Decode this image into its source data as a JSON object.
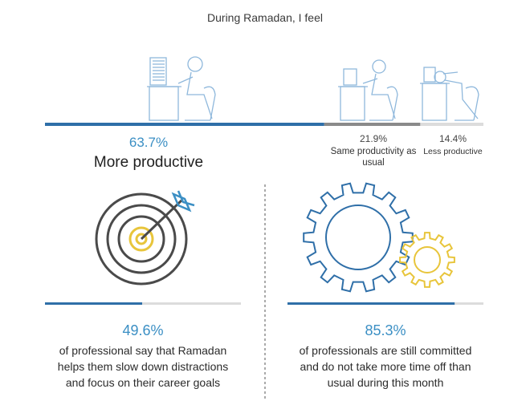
{
  "title": "During Ramadan, I feel",
  "colors": {
    "blue": "#2f6fa8",
    "gray": "#8a8a8a",
    "light": "#dcdcdc",
    "accent": "#3b8fc4",
    "yellow": "#e8c53b",
    "icon": "#8fb8dc"
  },
  "chart_data": [
    {
      "type": "bar",
      "orientation": "stacked-horizontal",
      "title": "During Ramadan, I feel",
      "categories": [
        "More productive",
        "Same productivity as usual",
        "Less productive"
      ],
      "values": [
        63.7,
        21.9,
        14.4
      ],
      "value_labels": [
        "63.7%",
        "21.9%",
        "14.4%"
      ],
      "unit": "%"
    },
    {
      "type": "bar",
      "orientation": "progress",
      "values": [
        49.6
      ],
      "value_labels": [
        "49.6%"
      ],
      "description": [
        "of professional say that Ramadan",
        "helps them slow down distractions",
        "and focus on their career goals"
      ],
      "unit": "%"
    },
    {
      "type": "bar",
      "orientation": "progress",
      "values": [
        85.3
      ],
      "value_labels": [
        "85.3%"
      ],
      "description": [
        "of professionals are still committed",
        "and do not take more time off than",
        "usual during this month"
      ],
      "unit": "%"
    }
  ]
}
